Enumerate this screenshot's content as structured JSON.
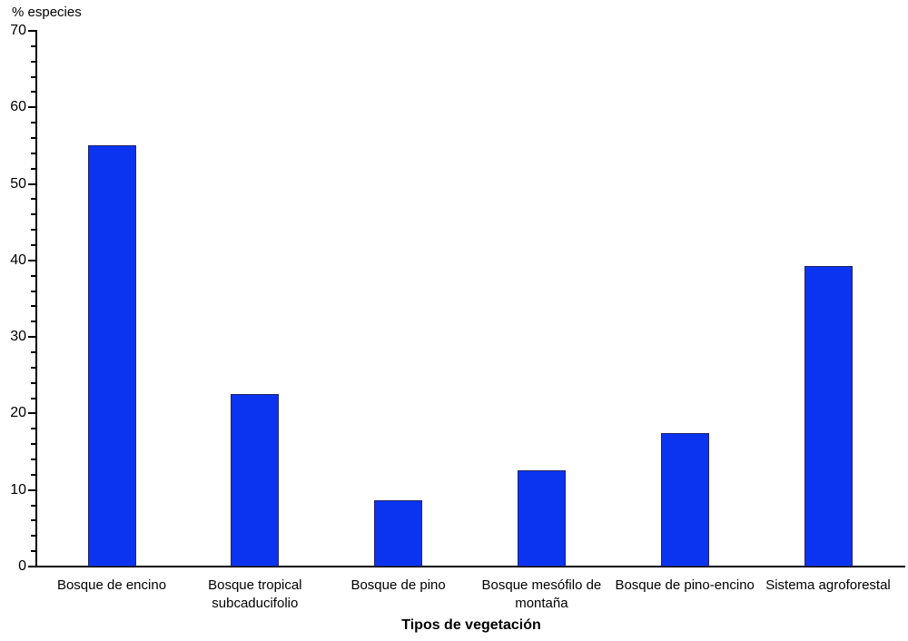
{
  "chart_data": {
    "type": "bar",
    "title": "",
    "ylabel": "% especies",
    "xlabel": "Tipos de vegetación",
    "categories": [
      "Bosque de encino",
      "Bosque tropical subcaducifolio",
      "Bosque de pino",
      "Bosque mesófilo de montaña",
      "Bosque de pino-encino",
      "Sistema agroforestal"
    ],
    "values": [
      55,
      22.5,
      8.7,
      12.6,
      17.5,
      39.3
    ],
    "ylim": [
      0,
      70
    ],
    "y_ticks": [
      0,
      10,
      20,
      30,
      40,
      50,
      60,
      70
    ],
    "y_minor_tick_step": 2,
    "grid": false,
    "legend_position": "none",
    "bar_color": "#0b34f0",
    "bar_border_color": "#22226a",
    "axis_color": "#000000",
    "background_color": "#ffffff"
  }
}
